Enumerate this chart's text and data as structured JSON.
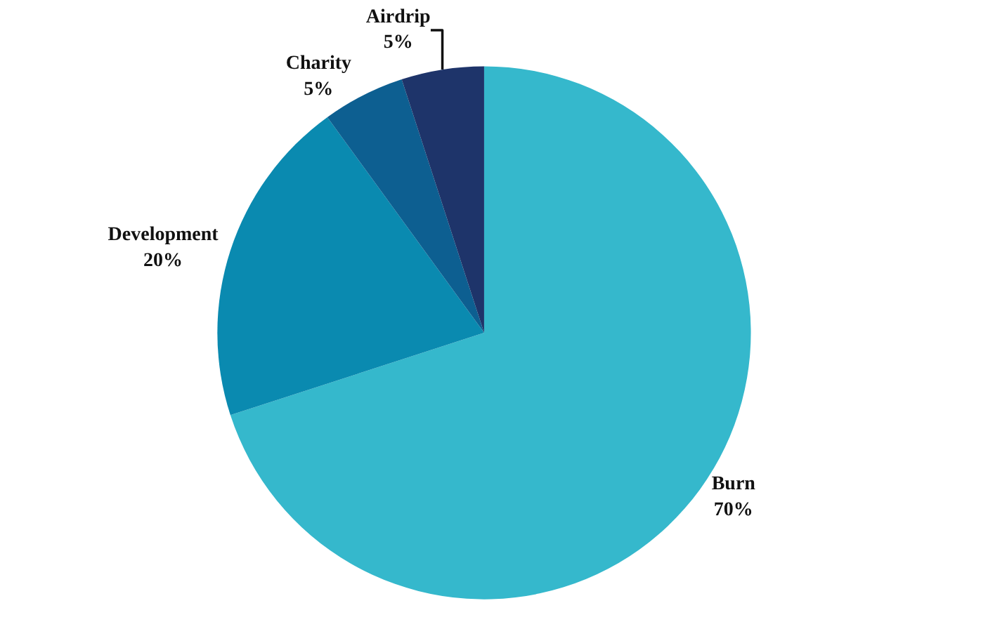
{
  "chart_data": {
    "type": "pie",
    "categories": [
      "Burn",
      "Development",
      "Charity",
      "Airdrip"
    ],
    "values": [
      70,
      20,
      5,
      5
    ],
    "value_labels": [
      "70%",
      "20%",
      "5%",
      "5%"
    ],
    "colors": [
      "#35b8cc",
      "#0a8ab0",
      "#0d5f91",
      "#1e346a"
    ],
    "legend": false
  }
}
